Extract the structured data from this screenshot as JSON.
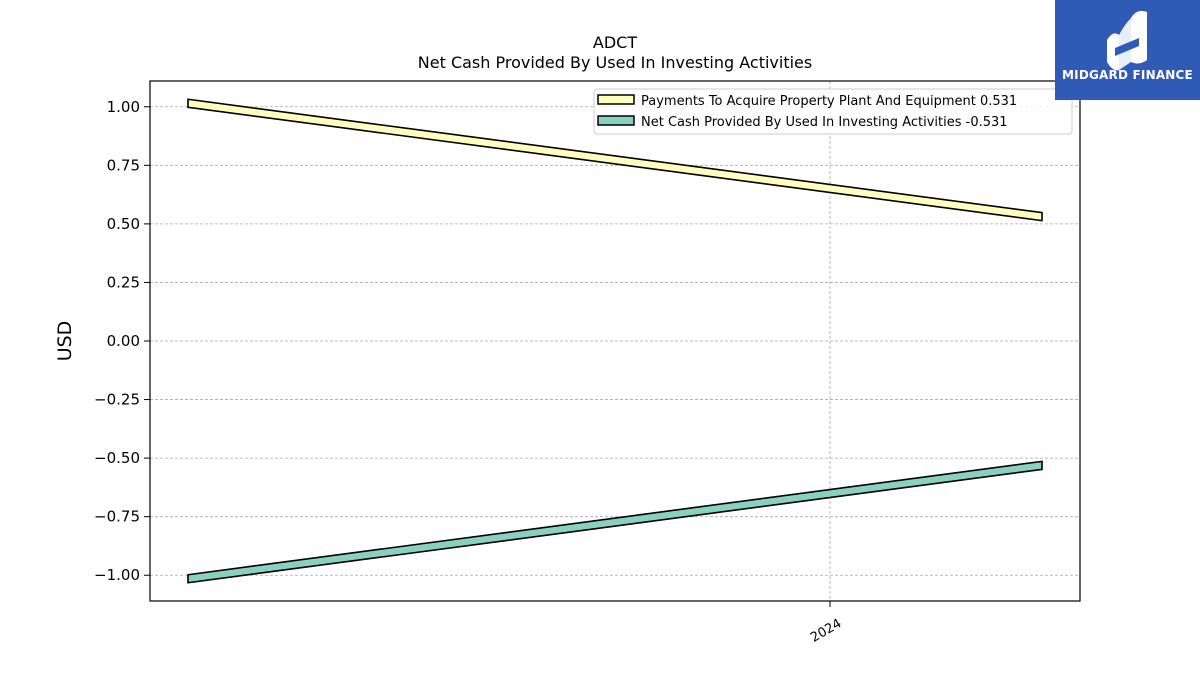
{
  "brand": {
    "name": "MIDGARD FINANCE"
  },
  "chart_data": {
    "type": "line",
    "title": "ADCT",
    "subtitle": "Net Cash Provided By Used In Investing Activities",
    "xlabel": "",
    "ylabel": "USD",
    "x_tick_labels": [
      "2024"
    ],
    "yticks": [
      1.0,
      0.75,
      0.5,
      0.25,
      0.0,
      -0.25,
      -0.5,
      -0.75,
      -1.0
    ],
    "ytick_labels": [
      "1.00",
      "0.75",
      "0.50",
      "0.25",
      "0.00",
      "−0.25",
      "−0.50",
      "−0.75",
      "−1.00"
    ],
    "ylim": [
      -1.11,
      1.11
    ],
    "grid": true,
    "legend_position": "top-right",
    "series": [
      {
        "name": "Payments To Acquire Property Plant And Equipment",
        "legend_label": "Payments To Acquire Property Plant And Equipment  0.531",
        "color": "#ffffbf",
        "values": [
          1.015,
          0.531
        ]
      },
      {
        "name": "Net Cash Provided By Used In Investing Activities",
        "legend_label": "Net Cash Provided By Used In Investing Activities  -0.531",
        "color": "#88d1bd",
        "values": [
          -1.015,
          -0.531
        ]
      }
    ]
  }
}
